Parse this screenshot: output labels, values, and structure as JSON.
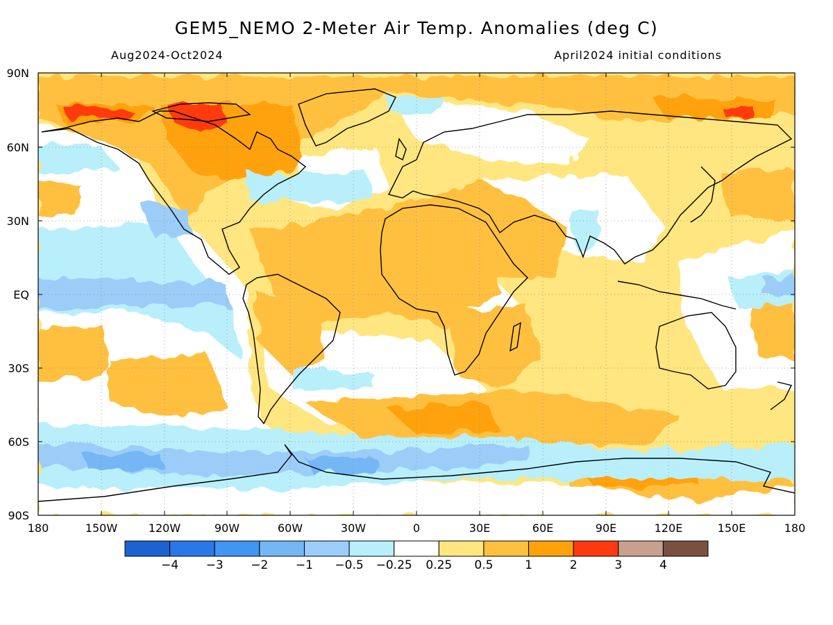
{
  "header": {
    "title": "GEM5_NEMO 2-Meter Air Temp. Anomalies (deg C)",
    "period": "Aug2024-Oct2024",
    "initial_conditions": "April2024 initial conditions"
  },
  "axes": {
    "lat_labels": [
      "90N",
      "60N",
      "30N",
      "EQ",
      "30S",
      "60S",
      "90S"
    ],
    "lon_labels": [
      "180",
      "150W",
      "120W",
      "90W",
      "60W",
      "30W",
      "0",
      "30E",
      "60E",
      "90E",
      "120E",
      "150E",
      "180"
    ]
  },
  "colorbar": {
    "colors": [
      "#1c63d0",
      "#2a77e8",
      "#3f96f3",
      "#75b6f5",
      "#9ccdf8",
      "#b8effb",
      "#ffffff",
      "#ffe680",
      "#ffc040",
      "#ffa20a",
      "#ff3a10",
      "#c8a090",
      "#7a5040"
    ],
    "labels": [
      "−4",
      "−3",
      "−2",
      "−1",
      "−0.5",
      "−0.25",
      "0.25",
      "0.5",
      "1",
      "2",
      "3",
      "4"
    ]
  },
  "map_colors": {
    "ocean_background": "#ffe680",
    "warm_1": "#ffc040",
    "warm_2": "#ffa20a",
    "hot": "#ff3a10",
    "neutral": "#ffffff",
    "cool_1": "#b8effb",
    "cool_2": "#9ccdf8",
    "cool_3": "#75b6f5",
    "cool_4": "#3f96f3",
    "coast": "#000000"
  }
}
